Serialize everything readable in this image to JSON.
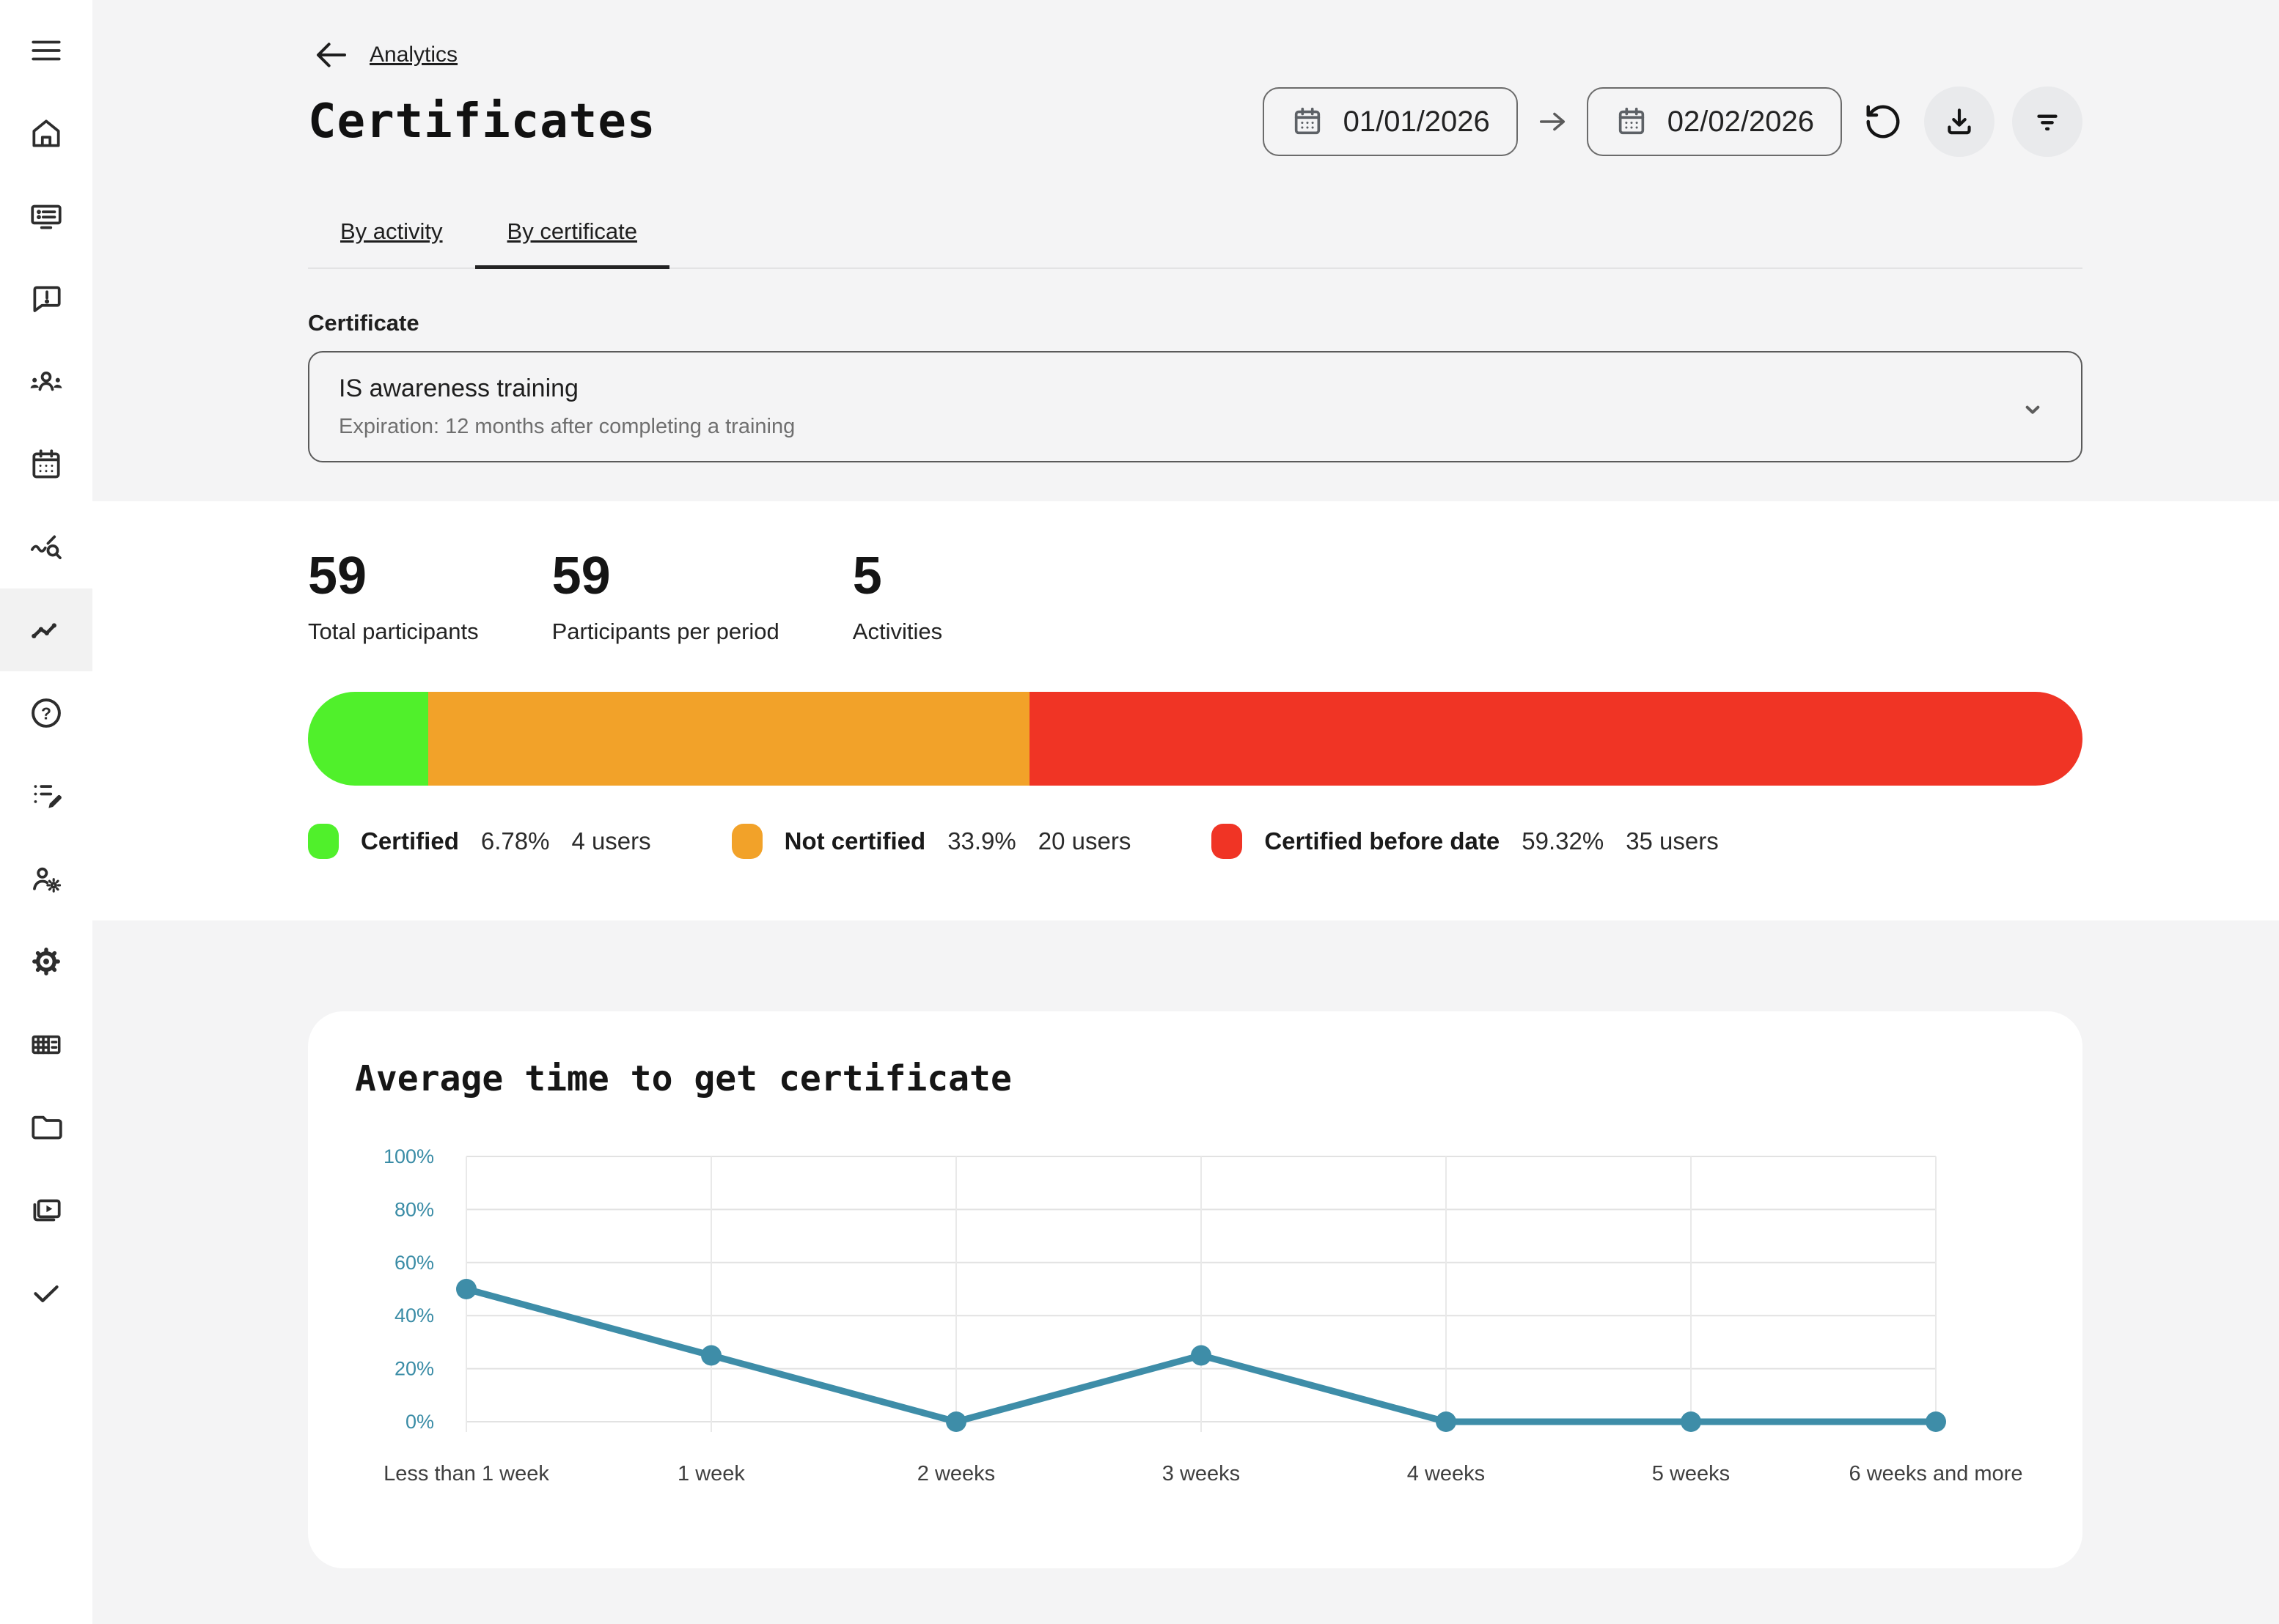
{
  "sidebar": {
    "items": [
      {
        "icon": "menu-icon",
        "active": false
      },
      {
        "icon": "home-icon",
        "active": false
      },
      {
        "icon": "courses-board-icon",
        "active": false
      },
      {
        "icon": "feedback-message-icon",
        "active": false
      },
      {
        "icon": "participants-icon",
        "active": false
      },
      {
        "icon": "calendar-icon",
        "active": false
      },
      {
        "icon": "analytics-search-icon",
        "active": false
      },
      {
        "icon": "trend-line-icon",
        "active": true
      },
      {
        "icon": "help-icon",
        "active": false
      },
      {
        "icon": "survey-edit-icon",
        "active": false
      },
      {
        "icon": "user-settings-icon",
        "active": false
      },
      {
        "icon": "settings-gear-icon",
        "active": false
      },
      {
        "icon": "company-icon",
        "active": false
      },
      {
        "icon": "folder-icon",
        "active": false
      },
      {
        "icon": "media-library-icon",
        "active": false
      },
      {
        "icon": "check-icon",
        "active": false
      }
    ]
  },
  "header": {
    "breadcrumb": "Analytics",
    "title": "Certificates",
    "date_from": "01/01/2026",
    "date_to": "02/02/2026",
    "icons": [
      "back-arrow-icon",
      "calendar-icon",
      "arrow-right-icon",
      "undo-icon",
      "download-icon",
      "filter-icon"
    ]
  },
  "tabs": [
    {
      "label": "By activity",
      "active": false
    },
    {
      "label": "By certificate",
      "active": true
    }
  ],
  "certificate_select": {
    "label": "Certificate",
    "value": "IS awareness training",
    "description": "Expiration: 12 months after completing a training",
    "icon": "chevron-down-icon"
  },
  "stats": [
    {
      "value": "59",
      "label": "Total participants"
    },
    {
      "value": "59",
      "label": "Participants per period"
    },
    {
      "value": "5",
      "label": "Activities"
    }
  ],
  "distribution": {
    "segments": [
      {
        "label": "Certified",
        "percent": "6.78%",
        "users": "4 users",
        "value": 6.78,
        "color": "#50f02b"
      },
      {
        "label": "Not certified",
        "percent": "33.9%",
        "users": "20 users",
        "value": 33.9,
        "color": "#f2a229"
      },
      {
        "label": "Certified before date",
        "percent": "59.32%",
        "users": "35 users",
        "value": 59.32,
        "color": "#f03425"
      }
    ]
  },
  "chart_data": {
    "type": "line",
    "title": "Average time to get certificate",
    "categories": [
      "Less than 1 week",
      "1 week",
      "2 weeks",
      "3 weeks",
      "4 weeks",
      "5 weeks",
      "6 weeks and more"
    ],
    "values": [
      50,
      25,
      0,
      25,
      0,
      0,
      0
    ],
    "y_ticks": [
      "0%",
      "20%",
      "40%",
      "60%",
      "80%",
      "100%"
    ],
    "ylim": [
      0,
      100
    ],
    "grid": true,
    "legend_position": "none",
    "line_color": "#3e8da8",
    "tick_color": "#3a8ca6",
    "xlabel": "",
    "ylabel": ""
  }
}
